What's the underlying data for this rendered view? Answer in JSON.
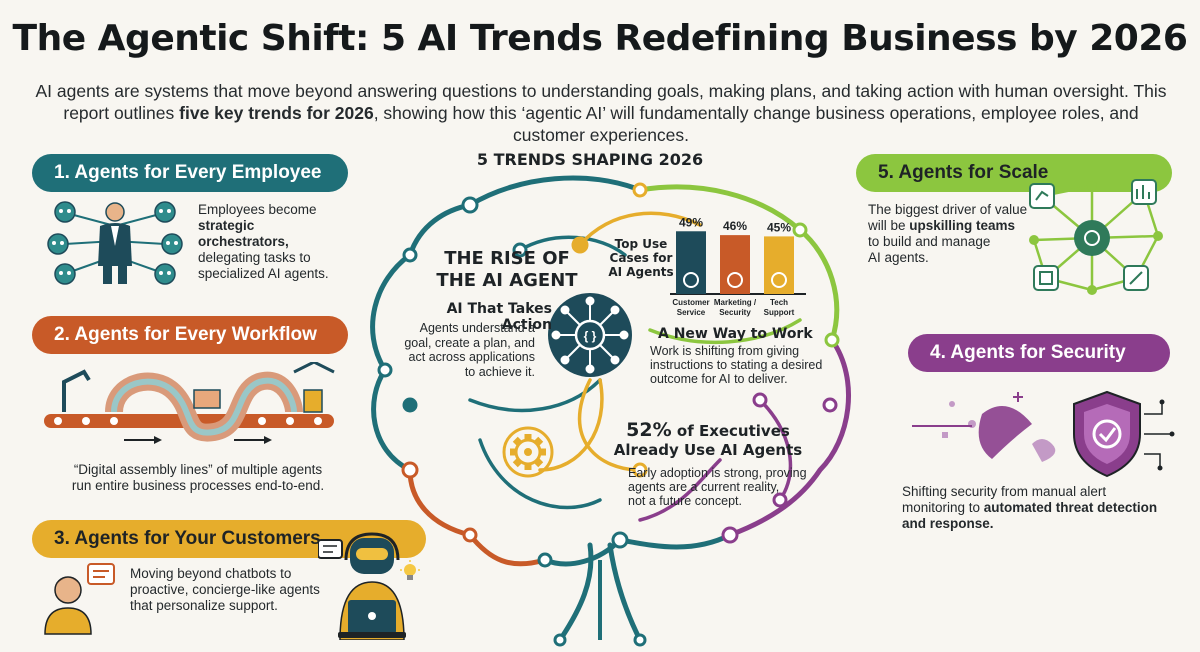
{
  "title": "The Agentic Shift: 5 AI Trends Redefining Business by 2026",
  "intro": {
    "part1": "AI agents are systems that move beyond answering questions to understanding goals, making plans, and taking action with human oversight. This report outlines ",
    "bold": "five key trends for 2026",
    "part2": ", showing how this ‘agentic AI’ will fundamentally change business operations, employee roles, and customer experiences."
  },
  "colors": {
    "teal": "#1f6f78",
    "orange": "#c85a28",
    "yellow": "#e6ad2c",
    "green": "#8cc63f",
    "purple": "#8a3e8c",
    "navy": "#1e4b5a"
  },
  "center": {
    "heading": "5 TRENDS SHAPING 2026",
    "rise_line1": "THE RISE OF",
    "rise_line2": "THE AI AGENT",
    "action_title": "AI That Takes Action",
    "action_text": [
      "Agents understand a",
      "goal, create a plan, and",
      "act across applications",
      "to achieve it."
    ],
    "new_way_title": "A New Way to Work",
    "new_way_text": [
      "Work is shifting from giving",
      "instructions to stating a desired",
      "outcome for AI to deliver."
    ],
    "exec_pct": "52%",
    "exec_title_rest": "of Executives",
    "exec_title_line2": "Already Use AI Agents",
    "exec_text": [
      "Early adoption is strong, proving",
      "agents are a current reality,",
      "not a future concept."
    ]
  },
  "chart_data": {
    "type": "bar",
    "title": "Top Use Cases for AI Agents",
    "categories": [
      "Customer Service",
      "Marketing / Security",
      "Tech Support"
    ],
    "values": [
      49,
      46,
      45
    ],
    "value_labels": [
      "49%",
      "46%",
      "45%"
    ],
    "unit": "%",
    "colors": [
      "#1e4b5a",
      "#c85a28",
      "#e6ad2c"
    ]
  },
  "trends": [
    {
      "label": "1. Agents for Every Employee",
      "text_plain1": "Employees become",
      "text_bold": "strategic orchestrators,",
      "text_plain2": [
        "delegating tasks to",
        "specialized AI agents."
      ]
    },
    {
      "label": "2. Agents for Every Workflow",
      "text": [
        "“Digital assembly lines” of multiple agents",
        "run entire business processes end-to-end."
      ]
    },
    {
      "label": "3. Agents for Your Customers",
      "text": [
        "Moving beyond chatbots to",
        "proactive, concierge-like agents",
        "that personalize support."
      ]
    },
    {
      "label": "4. Agents for Security",
      "text_plain1": "Shifting security from manual alert",
      "text_plain2": "monitoring to ",
      "text_bold1": "automated threat detection",
      "text_bold2": "and response."
    },
    {
      "label": "5. Agents for Scale",
      "text_plain1": [
        "The biggest driver of value",
        "will be "
      ],
      "text_bold": "upskilling teams",
      "text_plain2": [
        "to build and manage",
        "AI agents."
      ]
    }
  ],
  "icons": {
    "employee": "manager-with-robots-icon",
    "workflow": "assembly-line-pipes-icon",
    "customers": "customer-chat-robot-laptop-icon",
    "security": "shield-check-icon",
    "scale": "network-hub-icon",
    "hub": "ai-network-hub-icon",
    "gear": "gear-icon",
    "lightbulb": "lightbulb-icon"
  }
}
